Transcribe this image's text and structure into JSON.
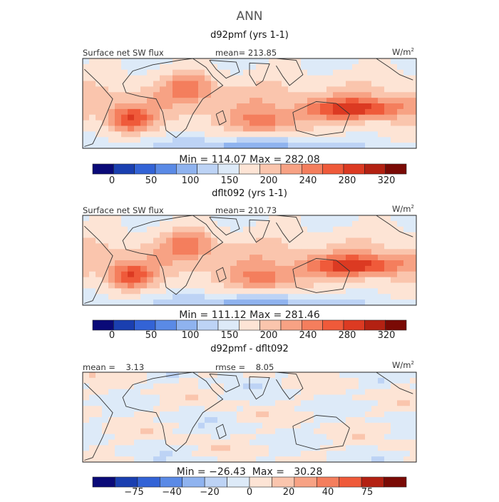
{
  "title": "ANN",
  "colors": {
    "abs_scale": [
      "#0a0a78",
      "#1a3fb0",
      "#3363d6",
      "#5a8ae6",
      "#8fb3ef",
      "#bdd3f5",
      "#ddeaf8",
      "#fde4d5",
      "#fac5ad",
      "#f7a284",
      "#f47e5d",
      "#ef5a3a",
      "#dc3a22",
      "#b32112",
      "#7a0a05"
    ],
    "diff_scale": [
      "#0a0a78",
      "#1a3fb0",
      "#3363d6",
      "#5a8ae6",
      "#8fb3ef",
      "#bdd3f5",
      "#ddeaf8",
      "#fde4d5",
      "#fac5ad",
      "#f7a284",
      "#f47e5d",
      "#ef5a3a",
      "#b32112",
      "#7a0a05"
    ]
  },
  "chart_data": [
    {
      "type": "heatmap",
      "title": "d92pmf (yrs 1-1)",
      "variable": "Surface net SW flux",
      "mean_text": "mean= 213.85",
      "units": "W/m",
      "units_sup": "2",
      "minmax_text": "Min =  114.07  Max =  282.08",
      "min": 114.07,
      "max": 282.08,
      "mean": 213.85,
      "colorbar_ticks": [
        "0",
        "50",
        "100",
        "150",
        "200",
        "240",
        "280",
        "320"
      ],
      "levels": [
        0,
        25,
        50,
        75,
        100,
        125,
        150,
        175,
        200,
        220,
        240,
        260,
        280,
        300,
        320
      ]
    },
    {
      "type": "heatmap",
      "title": "dflt092 (yrs 1-1)",
      "variable": "Surface net SW flux",
      "mean_text": "mean= 210.73",
      "units": "W/m",
      "units_sup": "2",
      "minmax_text": "Min =  111.12  Max =  281.46",
      "min": 111.12,
      "max": 281.46,
      "mean": 210.73,
      "colorbar_ticks": [
        "0",
        "50",
        "100",
        "150",
        "200",
        "240",
        "280",
        "320"
      ],
      "levels": [
        0,
        25,
        50,
        75,
        100,
        125,
        150,
        175,
        200,
        220,
        240,
        260,
        280,
        300,
        320
      ]
    },
    {
      "type": "heatmap",
      "title": "d92pmf - dflt092",
      "variable": "",
      "mean_text": "mean =    3.13",
      "rmse_text": "rmse =    8.05",
      "units": "W/m",
      "units_sup": "2",
      "minmax_text": "Min = −26.43  Max =   30.28",
      "min": -26.43,
      "max": 30.28,
      "mean": 3.13,
      "rmse": 8.05,
      "colorbar_ticks": [
        "−75",
        "−40",
        "−20",
        "0",
        "20",
        "40",
        "75"
      ],
      "levels": [
        -100,
        -75,
        -50,
        -40,
        -30,
        -20,
        -10,
        0,
        10,
        20,
        30,
        40,
        50,
        75,
        100
      ]
    }
  ]
}
